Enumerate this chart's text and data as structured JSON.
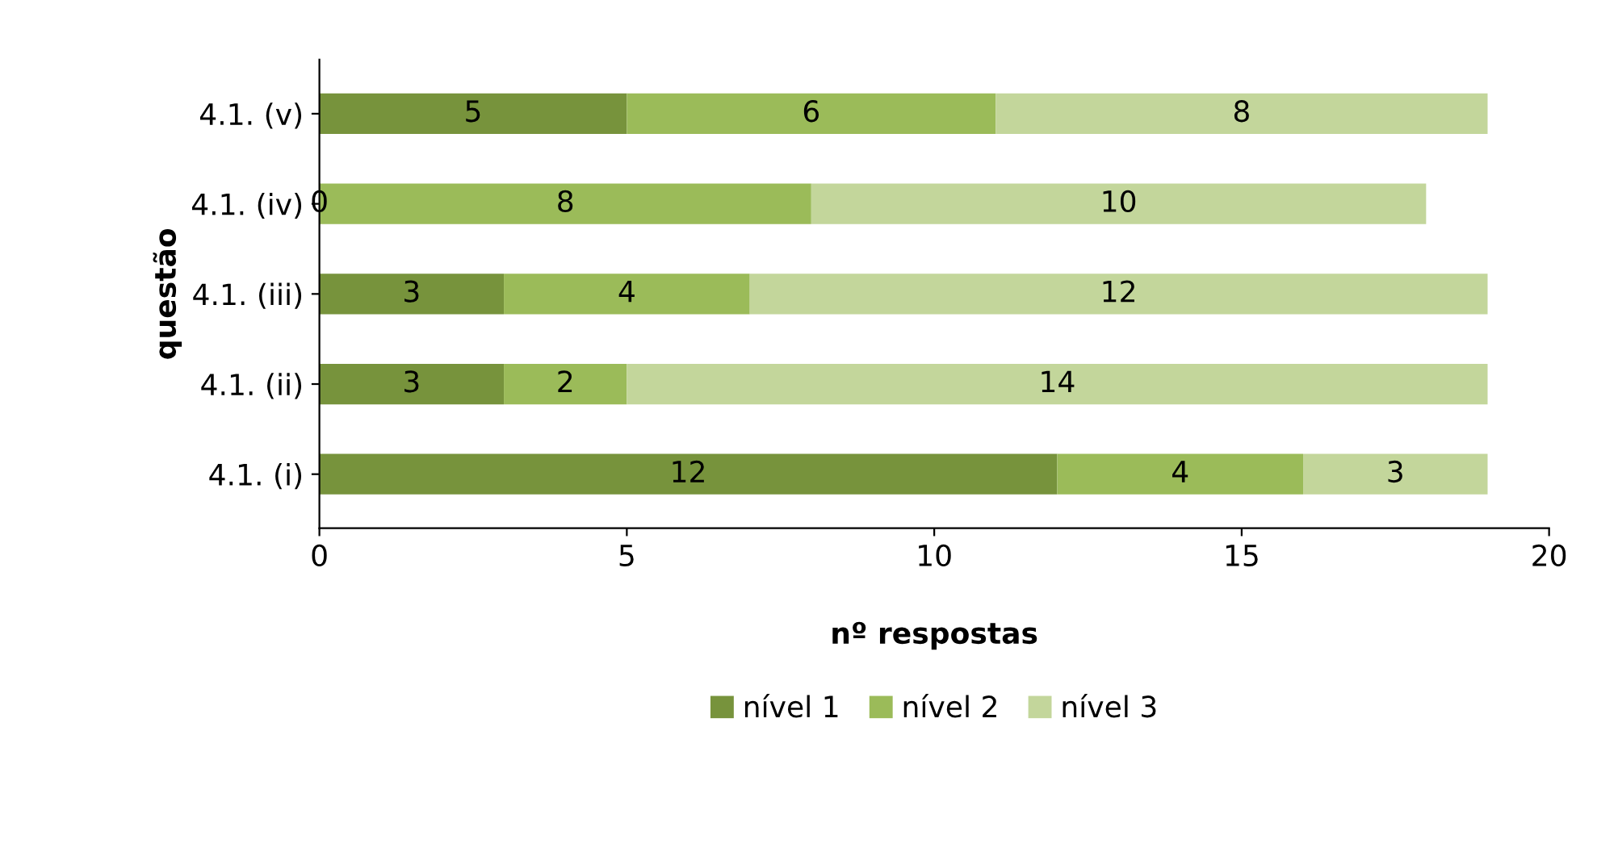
{
  "chart_data": {
    "type": "bar",
    "orientation": "horizontal",
    "stacked": true,
    "xlabel": "nº respostas",
    "ylabel": "questão",
    "categories": [
      "4.1. (v)",
      "4.1. (iv)",
      "4.1. (iii)",
      "4.1. (ii)",
      "4.1. (i)"
    ],
    "series": [
      {
        "name": "nível 1",
        "color": "#77933c",
        "values": [
          5,
          0,
          3,
          3,
          12
        ]
      },
      {
        "name": "nível 2",
        "color": "#9bbb59",
        "values": [
          6,
          8,
          4,
          2,
          4
        ]
      },
      {
        "name": "nível 3",
        "color": "#c3d69b",
        "values": [
          8,
          10,
          12,
          14,
          3
        ]
      }
    ],
    "xlim": [
      0,
      20
    ],
    "xticks": [
      0,
      5,
      10,
      15,
      20
    ],
    "data_labels": true,
    "legend": "bottom",
    "grid": false
  }
}
